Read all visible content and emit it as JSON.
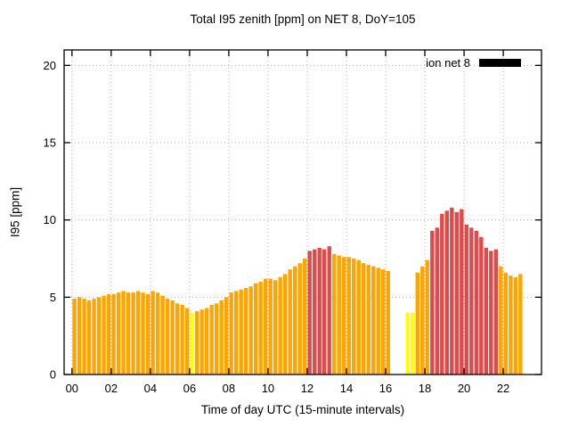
{
  "legend": {
    "label": "ion net 8",
    "swatch_color": "#000000"
  },
  "chart_data": {
    "type": "bar",
    "title": "Total I95 zenith [ppm] on NET 8, DoY=105",
    "xlabel": "Time of day UTC (15-minute intervals)",
    "ylabel": "I95 [ppm]",
    "xlim": [
      -0.4,
      23.95
    ],
    "ylim": [
      0,
      21
    ],
    "grid": true,
    "legend_position": "top-right-inside",
    "ytick_values": [
      0,
      5,
      10,
      15,
      20
    ],
    "ytick_labels": [
      "0",
      "5",
      "10",
      "15",
      "20"
    ],
    "xtick_values": [
      0,
      2,
      4,
      6,
      8,
      10,
      12,
      14,
      16,
      18,
      20,
      22
    ],
    "xtick_labels": [
      "00",
      "02",
      "04",
      "06",
      "08",
      "10",
      "12",
      "14",
      "16",
      "18",
      "20",
      "22"
    ],
    "start_hour": 0,
    "interval_minutes": 15,
    "color_map": {
      "o": "#ffa400",
      "r": "#e04a4a",
      "y": "#ffff00"
    },
    "values": [
      4.9,
      5.0,
      4.9,
      4.8,
      4.9,
      5.0,
      5.1,
      5.2,
      5.2,
      5.3,
      5.4,
      5.3,
      5.3,
      5.4,
      5.3,
      5.2,
      5.4,
      5.3,
      5.1,
      4.9,
      4.8,
      4.6,
      4.5,
      4.3,
      4.0,
      4.1,
      4.2,
      4.3,
      4.5,
      4.6,
      4.8,
      5.0,
      5.3,
      5.4,
      5.5,
      5.6,
      5.7,
      5.9,
      6.0,
      6.2,
      6.2,
      6.1,
      6.3,
      6.5,
      6.8,
      7.0,
      7.2,
      7.5,
      8.0,
      8.1,
      8.2,
      8.1,
      8.3,
      7.8,
      7.7,
      7.6,
      7.6,
      7.5,
      7.4,
      7.2,
      7.1,
      7.0,
      6.9,
      6.8,
      6.7,
      null,
      null,
      null,
      4.0,
      4.0,
      6.6,
      7.0,
      7.4,
      9.3,
      9.5,
      10.4,
      10.6,
      10.8,
      10.5,
      10.7,
      9.7,
      9.5,
      9.3,
      8.9,
      8.2,
      8.0,
      8.1,
      7.0,
      6.6,
      6.4,
      6.3,
      6.5
    ],
    "bar_colors": [
      "o",
      "o",
      "o",
      "o",
      "o",
      "o",
      "o",
      "o",
      "o",
      "o",
      "o",
      "o",
      "o",
      "o",
      "o",
      "o",
      "o",
      "o",
      "o",
      "o",
      "o",
      "o",
      "o",
      "o",
      "y",
      "o",
      "o",
      "o",
      "o",
      "o",
      "o",
      "o",
      "o",
      "o",
      "o",
      "o",
      "o",
      "o",
      "o",
      "o",
      "o",
      "o",
      "o",
      "o",
      "o",
      "o",
      "o",
      "o",
      "r",
      "r",
      "r",
      "r",
      "r",
      "o",
      "o",
      "o",
      "o",
      "o",
      "o",
      "o",
      "o",
      "o",
      "o",
      "o",
      "o",
      null,
      null,
      null,
      "y",
      "y",
      "o",
      "o",
      "o",
      "r",
      "r",
      "r",
      "r",
      "r",
      "r",
      "r",
      "r",
      "r",
      "r",
      "r",
      "r",
      "r",
      "r",
      "o",
      "o",
      "o",
      "o",
      "o"
    ]
  }
}
